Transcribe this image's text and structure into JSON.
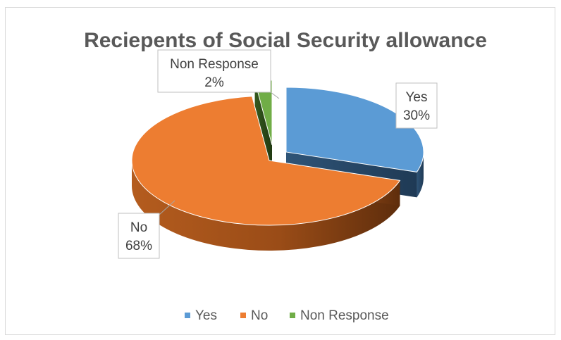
{
  "chart_data": {
    "type": "pie",
    "title": "Reciepents of Social Security allowance",
    "categories": [
      "Yes",
      "No",
      "Non Response"
    ],
    "values": [
      30,
      68,
      2
    ],
    "data_labels": [
      {
        "name": "Yes",
        "value": "30%"
      },
      {
        "name": "No",
        "value": "68%"
      },
      {
        "name": "Non Response",
        "value": "2%"
      }
    ],
    "legend": [
      "Yes",
      "No",
      "Non Response"
    ],
    "legend_position": "bottom",
    "colors": [
      "#5b9bd5",
      "#ed7d31",
      "#70ad47"
    ],
    "exploded": true,
    "three_d": true
  }
}
